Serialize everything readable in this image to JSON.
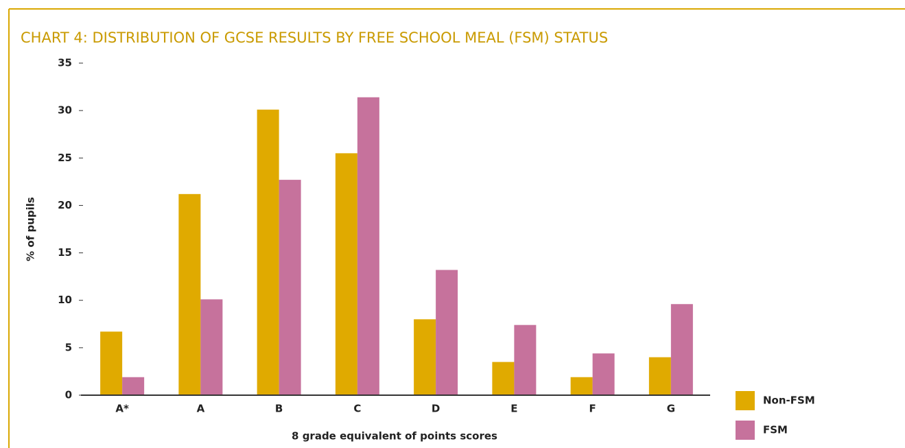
{
  "chart_data": {
    "type": "bar",
    "title": "CHART 4: DISTRIBUTION OF GCSE RESULTS BY FREE SCHOOL MEAL (FSM) STATUS",
    "y_label": "% of pupils",
    "x_label": "8 grade equivalent of points scores",
    "categories": [
      "A*",
      "A",
      "B",
      "C",
      "D",
      "E",
      "F",
      "G"
    ],
    "series": [
      {
        "name": "Non-FSM",
        "color": "#e0aa00",
        "values": [
          6.7,
          21.2,
          30.1,
          25.5,
          8.0,
          3.5,
          1.9,
          4.0
        ]
      },
      {
        "name": "FSM",
        "color": "#c6729c",
        "values": [
          1.9,
          10.1,
          22.7,
          31.4,
          13.2,
          7.4,
          4.4,
          9.6
        ]
      }
    ],
    "ylim": [
      0,
      35
    ],
    "yticks": [
      0,
      5,
      10,
      15,
      20,
      25,
      30,
      35
    ]
  }
}
